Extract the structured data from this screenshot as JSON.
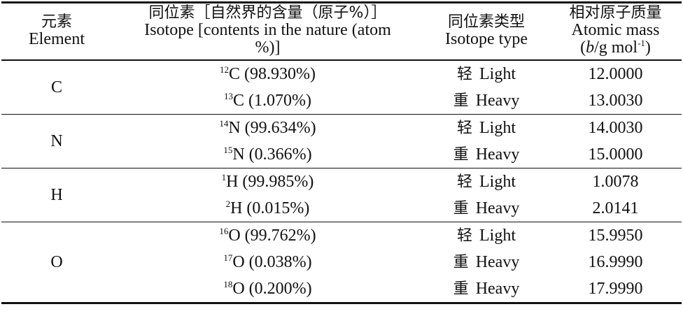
{
  "header": {
    "element": {
      "zh": "元素",
      "en": "Element"
    },
    "isotope": {
      "zh": "同位素［自然界的含量（原子%）］",
      "en": "Isotope [contents in the nature (atom %)]"
    },
    "type": {
      "zh": "同位素类型",
      "en": "Isotope type"
    },
    "mass": {
      "zh": "相对原子质量",
      "en": "Atomic mass",
      "unit": {
        "open": "(",
        "var": "b",
        "rest": "/g mol",
        "sup": "-1",
        "close": ")"
      }
    }
  },
  "groups": [
    {
      "element": "C",
      "isotopes": [
        {
          "mass_number": "12",
          "symbol": "C",
          "abundance": "(98.930%)",
          "type_zh": "轻",
          "type_en": "Light",
          "atomic_mass": "12.0000"
        },
        {
          "mass_number": "13",
          "symbol": "C",
          "abundance": "(1.070%)",
          "type_zh": "重",
          "type_en": "Heavy",
          "atomic_mass": "13.0030"
        }
      ]
    },
    {
      "element": "N",
      "isotopes": [
        {
          "mass_number": "14",
          "symbol": "N",
          "abundance": "(99.634%)",
          "type_zh": "轻",
          "type_en": "Light",
          "atomic_mass": "14.0030"
        },
        {
          "mass_number": "15",
          "symbol": "N",
          "abundance": "(0.366%)",
          "type_zh": "重",
          "type_en": "Heavy",
          "atomic_mass": "15.0000"
        }
      ]
    },
    {
      "element": "H",
      "isotopes": [
        {
          "mass_number": "1",
          "symbol": "H",
          "abundance": "(99.985%)",
          "type_zh": "轻",
          "type_en": "Light",
          "atomic_mass": "1.0078"
        },
        {
          "mass_number": "2",
          "symbol": "H",
          "abundance": "(0.015%)",
          "type_zh": "重",
          "type_en": "Heavy",
          "atomic_mass": "2.0141"
        }
      ]
    },
    {
      "element": "O",
      "isotopes": [
        {
          "mass_number": "16",
          "symbol": "O",
          "abundance": "(99.762%)",
          "type_zh": "轻",
          "type_en": "Light",
          "atomic_mass": "15.9950"
        },
        {
          "mass_number": "17",
          "symbol": "O",
          "abundance": "(0.038%)",
          "type_zh": "重",
          "type_en": "Heavy",
          "atomic_mass": "16.9990"
        },
        {
          "mass_number": "18",
          "symbol": "O",
          "abundance": "(0.200%)",
          "type_zh": "重",
          "type_en": "Heavy",
          "atomic_mass": "17.9990"
        }
      ]
    }
  ]
}
